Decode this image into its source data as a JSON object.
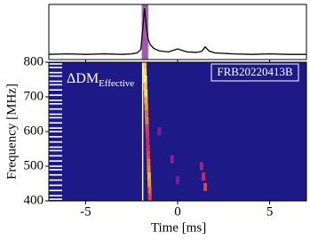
{
  "chart_data": {
    "type": "dynamic-spectrum",
    "xlabel": "Time [ms]",
    "ylabel": "Frequency [MHz]",
    "xlim": [
      -7,
      7
    ],
    "xticks": [
      -5,
      0,
      5
    ],
    "ylim": [
      400,
      800
    ],
    "yticks": [
      400,
      500,
      600,
      700,
      800
    ],
    "label": "FRB20220413B",
    "annotation": {
      "text": "ΔDM",
      "subscript": "Effective"
    },
    "background_color": "#1d1a88",
    "marker_time": -1.9,
    "profile": {
      "x": [
        -7,
        -6,
        -5,
        -4,
        -3,
        -2.5,
        -2.2,
        -2,
        -1.9,
        -1.8,
        -1.7,
        -1.6,
        -1.5,
        -1.3,
        -1,
        -0.5,
        0,
        0.5,
        1,
        1.3,
        1.5,
        1.7,
        2,
        3,
        4,
        5,
        6,
        7
      ],
      "values": [
        0.05,
        0.06,
        0.05,
        0.06,
        0.05,
        0.06,
        0.08,
        0.15,
        0.55,
        0.98,
        0.6,
        0.35,
        0.25,
        0.17,
        0.12,
        0.1,
        0.16,
        0.1,
        0.09,
        0.11,
        0.2,
        0.12,
        0.08,
        0.06,
        0.05,
        0.06,
        0.05,
        0.05
      ],
      "ylim": [
        0,
        1
      ],
      "color": "#000000",
      "highlight": [
        -1.95,
        -1.6
      ],
      "highlight_color": "#a25ba8"
    },
    "emission": {
      "time": [
        -1.79,
        -1.78,
        -1.76,
        -1.75,
        -1.73,
        -1.72,
        -1.7,
        -1.69,
        -1.67,
        -1.66,
        -1.64,
        -1.63,
        -1.61,
        -1.6,
        -1.58,
        -1.57,
        -1.55,
        -1.54,
        -1.52,
        -1.51,
        1.4,
        1.5,
        1.3,
        -0.3,
        0,
        -1
      ],
      "frequency": [
        790,
        770,
        750,
        730,
        710,
        690,
        670,
        650,
        630,
        610,
        590,
        570,
        550,
        530,
        510,
        490,
        470,
        450,
        430,
        410,
        470,
        440,
        500,
        520,
        460,
        600
      ],
      "intensity": [
        0.9,
        0.95,
        1,
        0.9,
        0.95,
        0.85,
        0.8,
        0.7,
        0.75,
        0.6,
        0.55,
        0.5,
        0.55,
        0.6,
        0.7,
        0.75,
        0.85,
        0.8,
        0.7,
        0.6,
        0.5,
        0.6,
        0.4,
        0.35,
        0.3,
        0.3
      ]
    },
    "flagged_channels": [
      795,
      785,
      770,
      760,
      745,
      735,
      720,
      705,
      690,
      680,
      665,
      650,
      640,
      625,
      610,
      600,
      585,
      570,
      555,
      545,
      530,
      515,
      500,
      490,
      475,
      460,
      445,
      430,
      415,
      405
    ]
  }
}
